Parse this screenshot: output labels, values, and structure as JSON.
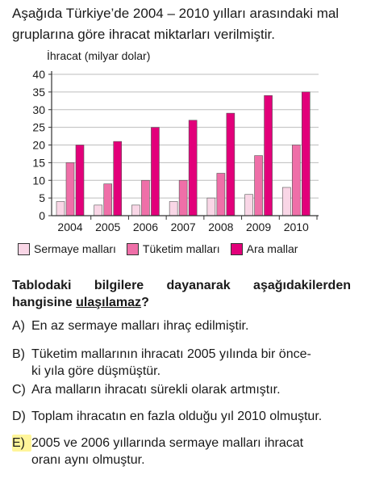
{
  "intro": "Aşağıda Türkiye’de 2004 – 2010 yılları arasındaki mal gruplarına göre ihracat miktarları verilmiştir.",
  "chart_data": {
    "type": "bar",
    "ylabel": "İhracat (milyar dolar)",
    "categories": [
      "2004",
      "2005",
      "2006",
      "2007",
      "2008",
      "2009",
      "2010"
    ],
    "ylim": [
      0,
      40
    ],
    "yticks": [
      0,
      5,
      10,
      15,
      20,
      25,
      30,
      35,
      40
    ],
    "series": [
      {
        "name": "Sermaye malları",
        "color": "#f9d6e6",
        "values": [
          4,
          3,
          3,
          4,
          5,
          6,
          8
        ]
      },
      {
        "name": "Tüketim malları",
        "color": "#ef6fa8",
        "values": [
          15,
          9,
          10,
          10,
          12,
          17,
          20
        ]
      },
      {
        "name": "Ara mallar",
        "color": "#e2007a",
        "values": [
          20,
          21,
          25,
          27,
          29,
          34,
          35
        ]
      }
    ],
    "grid": true
  },
  "question": {
    "text_before": "Tablodaki bilgilere dayanarak aşağıdakilerden hangisine ",
    "underlined": "ulaşılamaz",
    "text_after": "?"
  },
  "options": [
    {
      "label": "A)",
      "text": "En az sermaye malları ihraç edilmiştir."
    },
    {
      "label": "B)",
      "text": "Tüketim mallarının ihracatı 2005 yılında bir önce-",
      "text2": "ki yıla göre düşmüştür."
    },
    {
      "label": "C)",
      "text": "Ara malların ihracatı sürekli olarak artmıştır."
    },
    {
      "label": "D)",
      "text": "Toplam ihracatın en fazla olduğu yıl 2010 olmuştur."
    },
    {
      "label": "E)",
      "text": "2005 ve 2006 yıllarında sermaye malları ihracat",
      "text2": "oranı aynı olmuştur."
    }
  ],
  "highlight_color": "#fff59a"
}
